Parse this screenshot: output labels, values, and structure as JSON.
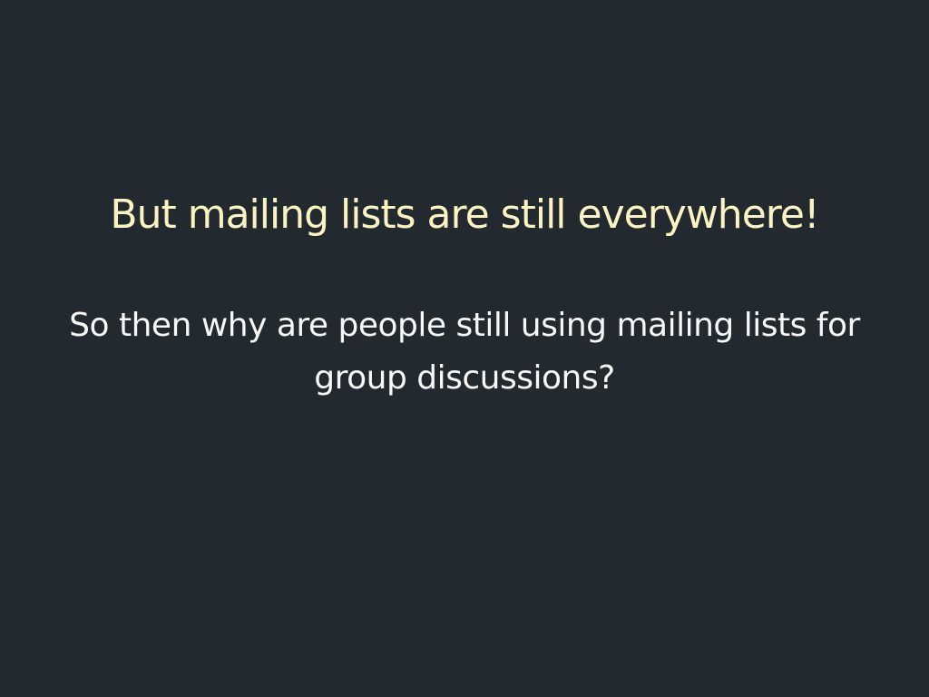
{
  "slide": {
    "title": "But mailing lists are still everywhere!",
    "body": "So then why are people still using mailing lists for group discussions?"
  },
  "colors": {
    "background": "#222a2f",
    "title_text": "#fbf3c1",
    "body_text": "#f7f7f7"
  }
}
